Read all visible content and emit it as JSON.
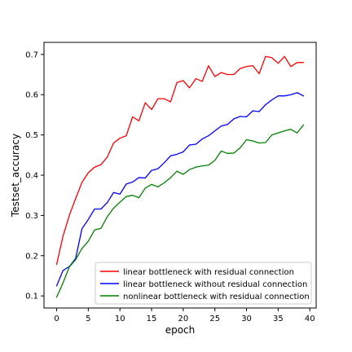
{
  "chart_data": {
    "type": "line",
    "xlabel": "epoch",
    "ylabel": "Testset_accuracy",
    "xlim": [
      -2,
      41
    ],
    "ylim": [
      0.07,
      0.73
    ],
    "xticks": [
      0,
      5,
      10,
      15,
      20,
      25,
      30,
      35,
      40
    ],
    "yticks": [
      0.1,
      0.2,
      0.3,
      0.4,
      0.5,
      0.6,
      0.7
    ],
    "xtick_labels": [
      "0",
      "5",
      "10",
      "15",
      "20",
      "25",
      "30",
      "35",
      "40"
    ],
    "ytick_labels": [
      "0.1",
      "0.2",
      "0.3",
      "0.4",
      "0.5",
      "0.6",
      "0.7"
    ],
    "grid": false,
    "legend_position": "lower-right",
    "x": [
      0,
      1,
      2,
      3,
      4,
      5,
      6,
      7,
      8,
      9,
      10,
      11,
      12,
      13,
      14,
      15,
      16,
      17,
      18,
      19,
      20,
      21,
      22,
      23,
      24,
      25,
      26,
      27,
      28,
      29,
      30,
      31,
      32,
      33,
      34,
      35,
      36,
      37,
      38,
      39
    ],
    "series": [
      {
        "name": "linear bottleneck with residual connection",
        "color": "#ff0000",
        "values": [
          0.178,
          0.248,
          0.3,
          0.342,
          0.382,
          0.406,
          0.42,
          0.426,
          0.445,
          0.48,
          0.492,
          0.498,
          0.545,
          0.535,
          0.58,
          0.563,
          0.59,
          0.59,
          0.582,
          0.63,
          0.635,
          0.617,
          0.64,
          0.633,
          0.672,
          0.645,
          0.655,
          0.65,
          0.65,
          0.665,
          0.67,
          0.672,
          0.652,
          0.695,
          0.692,
          0.678,
          0.695,
          0.67,
          0.68,
          0.68
        ]
      },
      {
        "name": "linear bottleneck without residual connection",
        "color": "#0000ff",
        "values": [
          0.125,
          0.163,
          0.173,
          0.193,
          0.267,
          0.29,
          0.316,
          0.316,
          0.332,
          0.357,
          0.353,
          0.378,
          0.383,
          0.394,
          0.393,
          0.412,
          0.416,
          0.431,
          0.448,
          0.452,
          0.458,
          0.475,
          0.477,
          0.49,
          0.498,
          0.51,
          0.522,
          0.526,
          0.54,
          0.546,
          0.545,
          0.56,
          0.558,
          0.575,
          0.587,
          0.597,
          0.597,
          0.6,
          0.605,
          0.597
        ]
      },
      {
        "name": "nonlinear bottleneck with residual connection",
        "color": "#008000",
        "values": [
          0.097,
          0.132,
          0.172,
          0.19,
          0.218,
          0.236,
          0.264,
          0.268,
          0.297,
          0.318,
          0.333,
          0.347,
          0.35,
          0.344,
          0.368,
          0.377,
          0.371,
          0.381,
          0.394,
          0.41,
          0.402,
          0.414,
          0.42,
          0.423,
          0.425,
          0.437,
          0.46,
          0.454,
          0.455,
          0.468,
          0.488,
          0.485,
          0.48,
          0.481,
          0.5,
          0.505,
          0.51,
          0.514,
          0.505,
          0.525
        ]
      }
    ]
  }
}
